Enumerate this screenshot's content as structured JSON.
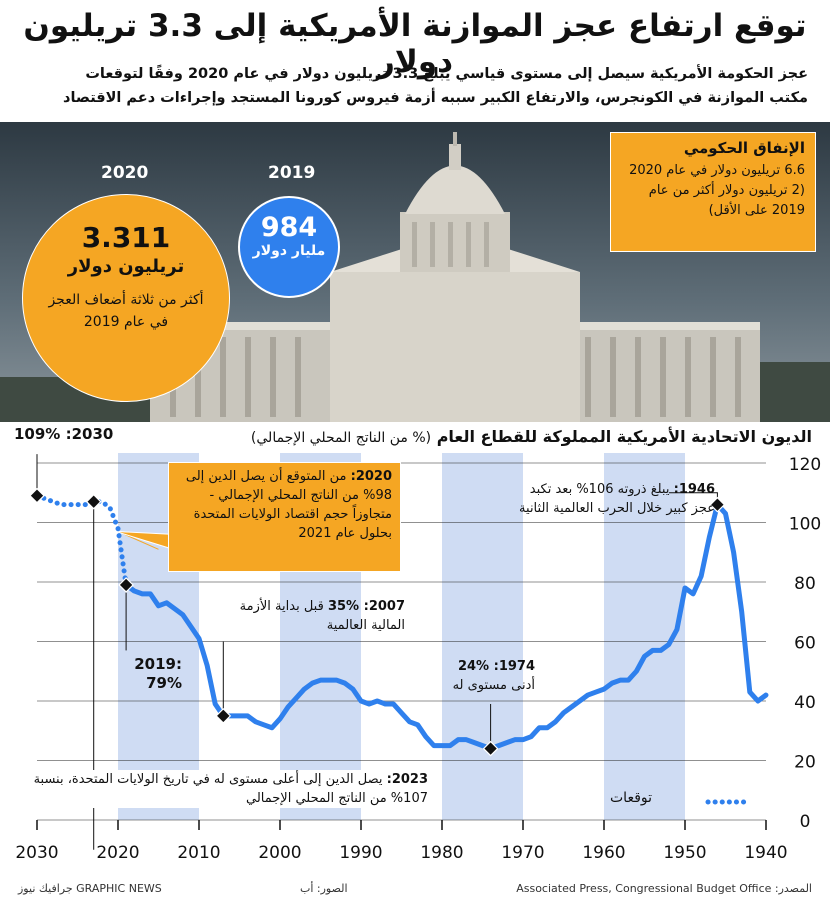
{
  "title": "توقع ارتفاع عجز الموازنة الأمريكية إلى 3.3 تريليون دولار",
  "subtitle_line1": "عجز الحكومة الأمريكية سيصل إلى مستوى قياسي يبلغ 3.3 تريليون دولار في عام 2020 وفقًا لتوقعات",
  "subtitle_line2": "مكتب الموازنة في الكونجرس، والارتفاع الكبير سببه أزمة فيروس كورونا المستجد وإجراءات دعم الاقتصاد",
  "spending": {
    "title": "الإنفاق الحكومي",
    "text": "6.6 تريليون دولار في عام 2020 (2 تريليون دولار أكثر من عام 2019 على الأقل)"
  },
  "deficit_2020": {
    "year": "2020",
    "value": "3.311",
    "unit": "تريليون دولار",
    "note": "أكثر من ثلاثة أضعاف العجز في عام 2019"
  },
  "deficit_2019": {
    "year": "2019",
    "value": "984",
    "unit": "مليار دولار"
  },
  "chart_title": "الديون الاتحادية الأمريكية المملوكة للقطاع العام",
  "chart_subtitle": "(% من الناتج المحلي الإجمالي)",
  "annotations": {
    "a2030": "2030: 109%",
    "a2020_year": "2020:",
    "a2020_text": "من المتوقع أن يصل الدين إلى 98% من الناتج المحلي الإجمالي - متجاوزاً حجم اقتصاد الولايات المتحدة بحلول عام 2021",
    "a1946_year": "1946:",
    "a1946_text": "يبلغ ذروته 106% بعد تكبد عجز كبير خلال الحرب العالمية الثانية",
    "a2007_year": "2007: 35%",
    "a2007_text": "قبل بداية الأزمة المالية العالمية",
    "a2019_year": ":2019",
    "a2019_val": "79%",
    "a1974_year": "1974: 24%",
    "a1974_text": "أدنى مستوى له",
    "a2023_year": "2023:",
    "a2023_text": "يصل الدين إلى أعلى مستوى له في تاريخ الولايات المتحدة، بنسبة 107% من الناتج المحلي الإجمالي"
  },
  "legend_label": "توقعات",
  "footer": {
    "source": "المصدر: Associated Press, Congressional Budget Office",
    "photo": "الصور: أب",
    "brand": "GRAPHIC NEWS جرافيك نيوز"
  },
  "colors": {
    "line": "#2f80ed",
    "orange": "#f5a623",
    "band": "#cfdcf3",
    "marker": "#111111"
  },
  "chart_data": {
    "type": "line",
    "title": "الديون الاتحادية الأمريكية المملوكة للقطاع العام",
    "ylabel": "(% من الناتج المحلي الإجمالي)",
    "xlim": [
      1940,
      2030
    ],
    "ylim": [
      0,
      120
    ],
    "x_ticks": [
      2030,
      2020,
      2010,
      2000,
      1990,
      1980,
      1970,
      1960,
      1950,
      1940
    ],
    "y_ticks": [
      0,
      20,
      40,
      60,
      80,
      100,
      120
    ],
    "x_axis_direction": "right-to-left",
    "series": [
      {
        "style": "solid",
        "x": [
          1940,
          1941,
          1942,
          1943,
          1944,
          1945,
          1946,
          1947,
          1948,
          1949,
          1950,
          1951,
          1952,
          1953,
          1954,
          1955,
          1956,
          1957,
          1958,
          1959,
          1960,
          1961,
          1962,
          1963,
          1964,
          1965,
          1966,
          1967,
          1968,
          1969,
          1970,
          1971,
          1972,
          1973,
          1974,
          1975,
          1976,
          1977,
          1978,
          1979,
          1980,
          1981,
          1982,
          1983,
          1984,
          1985,
          1986,
          1987,
          1988,
          1989,
          1990,
          1991,
          1992,
          1993,
          1994,
          1995,
          1996,
          1997,
          1998,
          1999,
          2000,
          2001,
          2002,
          2003,
          2004,
          2005,
          2006,
          2007,
          2008,
          2009,
          2010,
          2011,
          2012,
          2013,
          2014,
          2015,
          2016,
          2017,
          2018,
          2019
        ],
        "values": [
          42,
          40,
          43,
          70,
          90,
          103,
          106,
          95,
          82,
          76,
          78,
          64,
          59,
          57,
          57,
          55,
          50,
          47,
          47,
          46,
          44,
          43,
          42,
          40,
          38,
          36,
          33,
          31,
          31,
          28,
          27,
          27,
          26,
          25,
          24,
          25,
          26,
          27,
          27,
          25,
          25,
          25,
          28,
          32,
          33,
          36,
          39,
          39,
          40,
          39,
          40,
          44,
          46,
          47,
          47,
          47,
          46,
          44,
          41,
          38,
          34,
          31,
          32,
          33,
          35,
          35,
          35,
          35,
          39,
          52,
          61,
          65,
          69,
          71,
          73,
          72,
          76,
          76,
          77,
          79
        ]
      },
      {
        "name": "توقعات",
        "style": "dotted",
        "x": [
          2019,
          2020,
          2021,
          2022,
          2023,
          2024,
          2025,
          2026,
          2027,
          2028,
          2029,
          2030
        ],
        "values": [
          79,
          98,
          105,
          107,
          107,
          106,
          106,
          106,
          106,
          107,
          108,
          109
        ]
      }
    ],
    "highlight_points": [
      {
        "x": 2030,
        "y": 109
      },
      {
        "x": 2023,
        "y": 107
      },
      {
        "x": 2019,
        "y": 79
      },
      {
        "x": 2007,
        "y": 35
      },
      {
        "x": 1974,
        "y": 24
      },
      {
        "x": 1946,
        "y": 106
      }
    ],
    "shaded_decades": [
      [
        1950,
        1960
      ],
      [
        1970,
        1980
      ],
      [
        1990,
        2000
      ],
      [
        2010,
        2020
      ],
      [
        2030,
        2040
      ]
    ],
    "legend": "bottom-right"
  }
}
